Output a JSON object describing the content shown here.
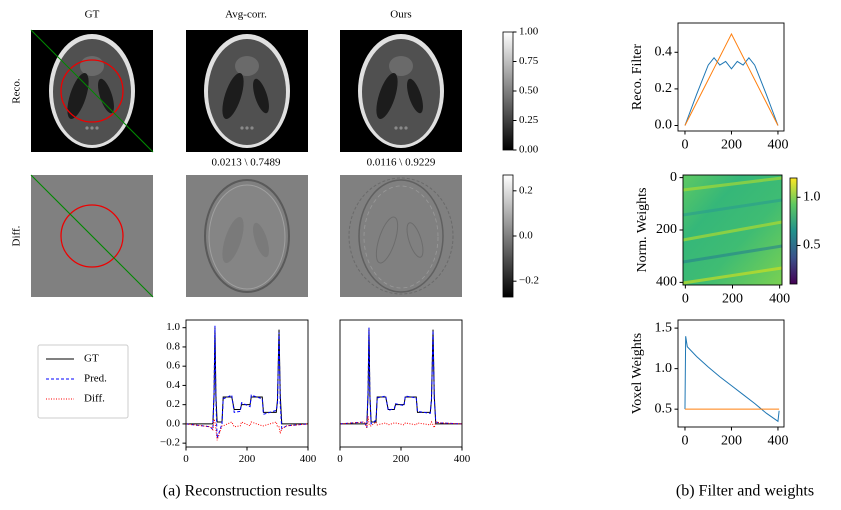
{
  "panel_a": {
    "column_titles": [
      "GT",
      "Avg-corr.",
      "Ours"
    ],
    "row_labels": [
      "Reco.",
      "Diff."
    ],
    "metrics": [
      "0.0213 \\ 0.7489",
      "0.0116 \\ 0.9229"
    ],
    "caption": "(a) Reconstruction results"
  },
  "panel_b": {
    "caption": "(b) Filter and weights"
  },
  "chart_data": [
    {
      "type": "line",
      "xlim": [
        0,
        400
      ],
      "ylim": [
        -0.24,
        1.08
      ],
      "xticks": [
        0,
        200,
        400
      ],
      "yticks": [
        {
          "value": -0.2,
          "label": "−0.2"
        },
        {
          "value": 0,
          "label": "0.0"
        },
        {
          "value": 0.2,
          "label": "0.2"
        },
        {
          "value": 0.4,
          "label": "0.4"
        },
        {
          "value": 0.6,
          "label": "0.6"
        },
        {
          "value": 0.8,
          "label": "0.8"
        },
        {
          "value": 1,
          "label": "1.0"
        }
      ],
      "legend": "left",
      "x": [
        0,
        80,
        88,
        92,
        95,
        98,
        102,
        118,
        122,
        150,
        158,
        178,
        182,
        210,
        214,
        250,
        254,
        296,
        300,
        305,
        309,
        314,
        330,
        400
      ],
      "series": [
        {
          "name": "GT",
          "color": "#000000",
          "linestyle": "solid",
          "values": [
            0,
            0,
            0,
            0.3,
            1.0,
            0.3,
            0.02,
            0.02,
            0.28,
            0.28,
            0.15,
            0.15,
            0.2,
            0.2,
            0.28,
            0.28,
            0.12,
            0.12,
            0.25,
            0.98,
            0.3,
            0,
            0,
            0
          ]
        },
        {
          "name": "Pred.",
          "color": "#0000ff",
          "linestyle": "dashed",
          "values": [
            0,
            -0.03,
            -0.06,
            0.35,
            1.02,
            0.25,
            -0.15,
            0.0,
            0.26,
            0.3,
            0.12,
            0.13,
            0.22,
            0.18,
            0.3,
            0.26,
            0.1,
            0.14,
            0.22,
            0.95,
            0.2,
            -0.05,
            -0.02,
            0
          ]
        },
        {
          "name": "Diff.",
          "color": "#ff0000",
          "linestyle": "dotted",
          "values": [
            0,
            -0.03,
            -0.06,
            0.05,
            0.02,
            -0.05,
            -0.17,
            -0.02,
            -0.02,
            0.02,
            -0.03,
            -0.02,
            0.02,
            -0.02,
            0.02,
            -0.02,
            -0.02,
            0.02,
            -0.03,
            -0.03,
            -0.1,
            -0.05,
            -0.02,
            0
          ]
        }
      ]
    },
    {
      "type": "line",
      "xlim": [
        0,
        400
      ],
      "ylim": [
        -0.24,
        1.08
      ],
      "xticks": [
        0,
        200,
        400
      ],
      "x": [
        0,
        80,
        88,
        92,
        95,
        98,
        102,
        118,
        122,
        150,
        158,
        178,
        182,
        210,
        214,
        250,
        254,
        296,
        300,
        305,
        309,
        314,
        330,
        400
      ],
      "series": [
        {
          "color": "#000000",
          "linestyle": "solid",
          "values": [
            0,
            0,
            0,
            0.3,
            1.0,
            0.3,
            0.02,
            0.02,
            0.28,
            0.28,
            0.15,
            0.15,
            0.2,
            0.2,
            0.28,
            0.28,
            0.12,
            0.12,
            0.25,
            0.98,
            0.3,
            0,
            0,
            0
          ]
        },
        {
          "color": "#0000ff",
          "linestyle": "dashed",
          "values": [
            0,
            0.02,
            -0.04,
            0.38,
            1.0,
            0.28,
            0.0,
            0.04,
            0.27,
            0.29,
            0.14,
            0.16,
            0.21,
            0.19,
            0.29,
            0.27,
            0.13,
            0.11,
            0.27,
            0.97,
            0.26,
            0.02,
            0.01,
            0
          ]
        },
        {
          "color": "#ff0000",
          "linestyle": "dotted",
          "values": [
            0,
            0.02,
            -0.04,
            0.08,
            0,
            -0.02,
            -0.02,
            0.02,
            -0.01,
            0.01,
            -0.01,
            0.01,
            0.01,
            -0.01,
            0.01,
            -0.01,
            0.01,
            -0.01,
            0.02,
            -0.01,
            -0.04,
            0.02,
            0.01,
            0
          ]
        }
      ]
    },
    {
      "type": "colorbar",
      "colormap": "gray",
      "ylim": [
        0,
        1
      ],
      "yticks": [
        {
          "value": 0,
          "label": "0.00"
        },
        {
          "value": 0.25,
          "label": "0.25"
        },
        {
          "value": 0.5,
          "label": "0.50"
        },
        {
          "value": 0.75,
          "label": "0.75"
        },
        {
          "value": 1,
          "label": "1.00"
        }
      ]
    },
    {
      "type": "colorbar",
      "colormap": "gray",
      "ylim": [
        -0.27,
        0.27
      ],
      "yticks": [
        {
          "value": -0.2,
          "label": "−0.2"
        },
        {
          "value": 0,
          "label": "0.0"
        },
        0.2
      ]
    },
    {
      "type": "line",
      "ylabel": "Reco. Filter",
      "xlim": [
        -30,
        426
      ],
      "ylim": [
        -0.03,
        0.56
      ],
      "xticks": [
        0,
        200,
        400
      ],
      "yticks": [
        {
          "value": 0,
          "label": "0.0"
        },
        0.2,
        0.4
      ],
      "x": [
        0,
        50,
        100,
        125,
        150,
        175,
        200,
        225,
        250,
        275,
        300,
        350,
        400
      ],
      "series": [
        {
          "color": "#1f77b4",
          "linestyle": "solid",
          "values": [
            0,
            0.17,
            0.33,
            0.37,
            0.33,
            0.35,
            0.31,
            0.35,
            0.33,
            0.37,
            0.33,
            0.17,
            0
          ]
        },
        {
          "color": "#ff7f0e",
          "linestyle": "solid",
          "values": [
            0,
            0.125,
            0.25,
            0.3125,
            0.375,
            0.4375,
            0.5,
            0.4375,
            0.375,
            0.3125,
            0.25,
            0.125,
            0
          ]
        }
      ]
    },
    {
      "type": "heatmap",
      "ylabel": "Norm. Weights",
      "colormap": "viridis",
      "xlim": [
        -10,
        410
      ],
      "ylim": [
        410,
        -10
      ],
      "xticks": [
        0,
        200,
        400
      ],
      "yticks": [
        0,
        200,
        400
      ],
      "zlim": [
        0.1,
        1.2
      ],
      "zticks": [
        0.5,
        {
          "value": 1,
          "label": "1.0"
        }
      ]
    },
    {
      "type": "line",
      "ylabel": "Voxel Weights",
      "xlim": [
        -30,
        426
      ],
      "ylim": [
        0.28,
        1.6
      ],
      "xticks": [
        0,
        200,
        400
      ],
      "yticks": [
        0.5,
        {
          "value": 1,
          "label": "1.0"
        },
        1.5
      ],
      "x": [
        0,
        3,
        10,
        50,
        100,
        150,
        200,
        250,
        300,
        350,
        400,
        405
      ],
      "series": [
        {
          "color": "#1f77b4",
          "linestyle": "solid",
          "values": [
            0.5,
            1.4,
            1.27,
            1.15,
            1.02,
            0.9,
            0.79,
            0.68,
            0.57,
            0.45,
            0.35,
            0.48
          ]
        },
        {
          "color": "#ff7f0e",
          "linestyle": "solid",
          "values": [
            0.5,
            0.5,
            0.5,
            0.5,
            0.5,
            0.5,
            0.5,
            0.5,
            0.5,
            0.5,
            0.5,
            0.5
          ]
        }
      ]
    }
  ]
}
